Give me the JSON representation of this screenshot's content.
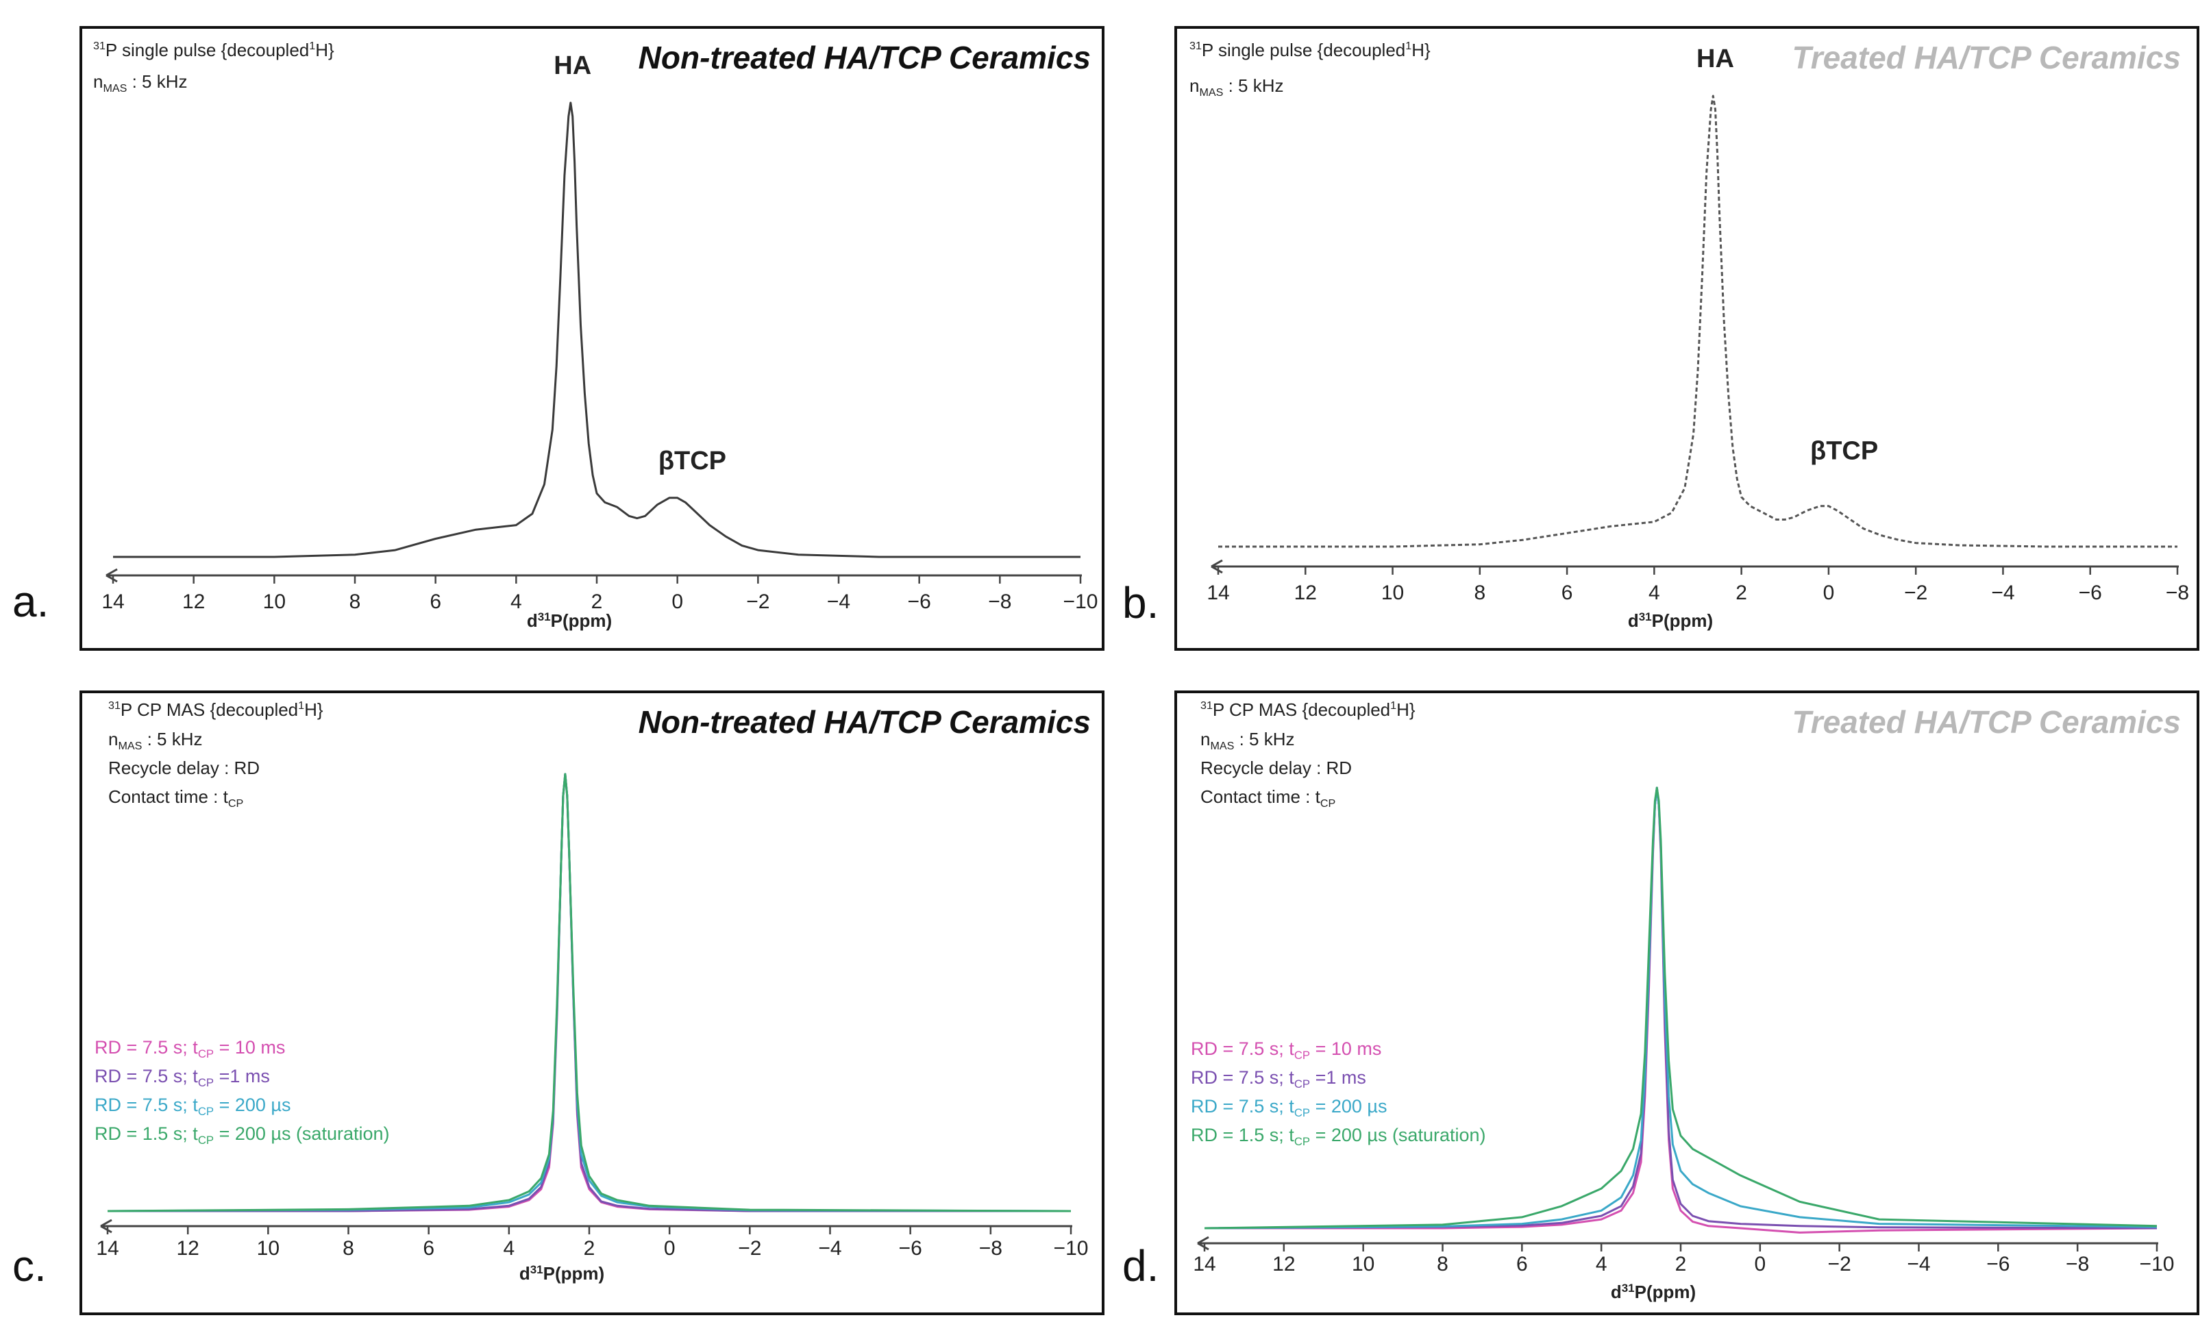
{
  "panels": [
    {
      "letter": "a.",
      "ceramic_title": "Non-treated HA/TCP Ceramics",
      "title_color": "#111111",
      "params": [
        {
          "pre": "",
          "sup": "31",
          "main": "P single pulse {decoupled",
          "sup2": "1",
          "post": "H}",
          "sub": ""
        },
        {
          "pre": "",
          "sup": "",
          "main": "n",
          "sub": "MAS",
          "post": " : 5 kHz",
          "sup2": ""
        }
      ],
      "axis": {
        "ticks": [
          14,
          12,
          10,
          8,
          6,
          4,
          2,
          0,
          -2,
          -4,
          -6,
          -8,
          -10
        ],
        "xlim": [
          14,
          -10
        ],
        "label_main": "d",
        "label_sup": "31",
        "label_post": "P(ppm)"
      },
      "peak_labels": [
        {
          "text": "HA",
          "ppm": 2.6
        },
        {
          "text": "βTCP",
          "ppm": -0.2
        }
      ],
      "chart_data": {
        "type": "line",
        "title": "Non-treated HA/TCP Ceramics",
        "xlabel": "d31P(ppm)",
        "xlim": [
          14,
          -10
        ],
        "ylim": [
          0,
          1
        ],
        "series": [
          {
            "name": "31P single pulse",
            "color": "#3a3a3a",
            "dash": "",
            "x": [
              14,
              10,
              8,
              7,
              6,
              5,
              4.5,
              4,
              3.6,
              3.3,
              3.1,
              3.0,
              2.9,
              2.8,
              2.7,
              2.65,
              2.6,
              2.55,
              2.5,
              2.4,
              2.3,
              2.2,
              2.1,
              2.0,
              1.8,
              1.5,
              1.2,
              1.0,
              0.8,
              0.5,
              0.2,
              0.0,
              -0.2,
              -0.5,
              -0.8,
              -1.2,
              -1.6,
              -2.0,
              -3,
              -5,
              -8,
              -10
            ],
            "y": [
              0.0,
              0.0,
              0.005,
              0.015,
              0.04,
              0.06,
              0.065,
              0.07,
              0.095,
              0.16,
              0.28,
              0.42,
              0.62,
              0.84,
              0.97,
              1.0,
              0.97,
              0.87,
              0.73,
              0.51,
              0.36,
              0.25,
              0.18,
              0.14,
              0.12,
              0.11,
              0.09,
              0.085,
              0.09,
              0.115,
              0.13,
              0.13,
              0.12,
              0.095,
              0.07,
              0.045,
              0.025,
              0.015,
              0.005,
              0.0,
              0.0,
              0.0
            ]
          }
        ]
      }
    },
    {
      "letter": "b.",
      "ceramic_title": "Treated HA/TCP Ceramics",
      "title_color": "#b8b8b8",
      "params": [
        {
          "pre": "",
          "sup": "31",
          "main": "P single pulse {decoupled",
          "sup2": "1",
          "post": "H}",
          "sub": ""
        },
        {
          "pre": "",
          "sup": "",
          "main": "n",
          "sub": "MAS",
          "post": " : 5 kHz",
          "sup2": ""
        }
      ],
      "axis": {
        "ticks": [
          14,
          12,
          10,
          8,
          6,
          4,
          2,
          0,
          -2,
          -4,
          -6,
          -8
        ],
        "xlim": [
          14,
          -8
        ],
        "label_main": "d",
        "label_sup": "31",
        "label_post": "P(ppm)"
      },
      "peak_labels": [
        {
          "text": "HA",
          "ppm": 2.6
        },
        {
          "text": "βTCP",
          "ppm": -0.2
        }
      ],
      "chart_data": {
        "type": "line",
        "title": "Treated HA/TCP Ceramics",
        "xlabel": "d31P(ppm)",
        "xlim": [
          14,
          -8
        ],
        "ylim": [
          0,
          1
        ],
        "series": [
          {
            "name": "31P single pulse",
            "color": "#555555",
            "dash": "6,4",
            "x": [
              14,
              10,
              8,
              7,
              6,
              5,
              4.5,
              4,
              3.6,
              3.3,
              3.1,
              3.0,
              2.9,
              2.8,
              2.7,
              2.65,
              2.6,
              2.55,
              2.5,
              2.4,
              2.3,
              2.2,
              2.1,
              2.0,
              1.8,
              1.5,
              1.2,
              1.0,
              0.8,
              0.5,
              0.2,
              0.0,
              -0.2,
              -0.5,
              -0.8,
              -1.2,
              -1.6,
              -2.0,
              -3,
              -5,
              -8
            ],
            "y": [
              0.0,
              0.0,
              0.005,
              0.015,
              0.03,
              0.045,
              0.05,
              0.055,
              0.075,
              0.13,
              0.25,
              0.39,
              0.6,
              0.83,
              0.97,
              1.0,
              0.97,
              0.87,
              0.73,
              0.5,
              0.34,
              0.22,
              0.15,
              0.11,
              0.09,
              0.075,
              0.06,
              0.06,
              0.065,
              0.08,
              0.09,
              0.09,
              0.08,
              0.06,
              0.04,
              0.025,
              0.015,
              0.008,
              0.003,
              0.0,
              0.0
            ]
          }
        ]
      }
    },
    {
      "letter": "c.",
      "ceramic_title": "Non-treated HA/TCP Ceramics",
      "title_color": "#111111",
      "params": [
        {
          "pre": "",
          "sup": "31",
          "main": "P CP MAS {decoupled",
          "sup2": "1",
          "post": "H}",
          "sub": ""
        },
        {
          "pre": "",
          "sup": "",
          "main": "n",
          "sub": "MAS",
          "post": " : 5 kHz",
          "sup2": ""
        },
        {
          "pre": "",
          "sup": "",
          "main": "Recycle delay : RD",
          "sub": "",
          "post": "",
          "sup2": ""
        },
        {
          "pre": "",
          "sup": "",
          "main": "Contact time : t",
          "sub": "CP",
          "post": "",
          "sup2": ""
        }
      ],
      "legend": [
        {
          "pre": "RD = 7.5 s; t",
          "sub": "CP",
          "post": " = 10 ms",
          "color": "#d44fb0"
        },
        {
          "pre": "RD = 7.5 s; t",
          "sub": "CP",
          "post": " =1 ms",
          "color": "#7a4fb0"
        },
        {
          "pre": "RD = 7.5 s; t",
          "sub": "CP",
          "post": " = 200 µs",
          "color": "#3aa8c8"
        },
        {
          "pre": "RD = 1.5 s; t",
          "sub": "CP",
          "post": " = 200 µs (saturation)",
          "color": "#3aa86a"
        }
      ],
      "axis": {
        "ticks": [
          14,
          12,
          10,
          8,
          6,
          4,
          2,
          0,
          -2,
          -4,
          -6,
          -8,
          -10
        ],
        "xlim": [
          14,
          -10
        ],
        "label_main": "d",
        "label_sup": "31",
        "label_post": "P(ppm)"
      },
      "peak_labels": [],
      "chart_data": {
        "type": "line",
        "title": "Non-treated HA/TCP Ceramics",
        "xlabel": "d31P(ppm)",
        "xlim": [
          14,
          -10
        ],
        "ylim": [
          0,
          1
        ],
        "series": [
          {
            "name": "RD = 7.5 s; tCP = 10 ms",
            "color": "#d44fb0",
            "dash": "",
            "x": [
              14,
              8,
              5,
              4,
              3.5,
              3.2,
              3.0,
              2.9,
              2.8,
              2.7,
              2.65,
              2.6,
              2.55,
              2.5,
              2.4,
              2.3,
              2.2,
              2.0,
              1.7,
              1.3,
              0.5,
              -2,
              -10
            ],
            "y": [
              0.0,
              0.0,
              0.003,
              0.01,
              0.025,
              0.05,
              0.1,
              0.2,
              0.45,
              0.8,
              0.95,
              1.0,
              0.95,
              0.82,
              0.5,
              0.22,
              0.1,
              0.05,
              0.02,
              0.01,
              0.004,
              0.0,
              0.0
            ]
          },
          {
            "name": "RD = 7.5 s; tCP =1 ms",
            "color": "#7a4fb0",
            "dash": "",
            "x": [
              14,
              8,
              5,
              4,
              3.5,
              3.2,
              3.0,
              2.9,
              2.8,
              2.7,
              2.65,
              2.6,
              2.55,
              2.5,
              2.4,
              2.3,
              2.2,
              2.0,
              1.7,
              1.3,
              0.5,
              -2,
              -10
            ],
            "y": [
              0.0,
              0.0,
              0.004,
              0.012,
              0.028,
              0.055,
              0.11,
              0.21,
              0.46,
              0.8,
              0.95,
              1.0,
              0.95,
              0.82,
              0.5,
              0.23,
              0.11,
              0.055,
              0.022,
              0.012,
              0.005,
              0.0,
              0.0
            ]
          },
          {
            "name": "RD = 7.5 s; tCP = 200 µs",
            "color": "#3aa8c8",
            "dash": "",
            "x": [
              14,
              8,
              5,
              4,
              3.5,
              3.2,
              3.0,
              2.9,
              2.8,
              2.7,
              2.65,
              2.6,
              2.55,
              2.5,
              2.4,
              2.3,
              2.2,
              2.0,
              1.7,
              1.3,
              0.5,
              -2,
              -10
            ],
            "y": [
              0.0,
              0.003,
              0.008,
              0.02,
              0.038,
              0.065,
              0.12,
              0.22,
              0.47,
              0.8,
              0.95,
              1.0,
              0.95,
              0.82,
              0.51,
              0.25,
              0.13,
              0.07,
              0.035,
              0.02,
              0.01,
              0.002,
              0.0
            ]
          },
          {
            "name": "RD = 1.5 s; tCP = 200 µs (saturation)",
            "color": "#3aa86a",
            "dash": "",
            "x": [
              14,
              8,
              5,
              4,
              3.5,
              3.2,
              3.0,
              2.9,
              2.8,
              2.7,
              2.65,
              2.6,
              2.55,
              2.5,
              2.4,
              2.3,
              2.2,
              2.0,
              1.7,
              1.3,
              0.5,
              -2,
              -10
            ],
            "y": [
              0.0,
              0.004,
              0.012,
              0.025,
              0.045,
              0.075,
              0.13,
              0.23,
              0.48,
              0.8,
              0.95,
              1.0,
              0.95,
              0.82,
              0.52,
              0.27,
              0.15,
              0.08,
              0.04,
              0.025,
              0.012,
              0.003,
              0.0
            ]
          }
        ]
      }
    },
    {
      "letter": "d.",
      "ceramic_title": "Treated HA/TCP Ceramics",
      "title_color": "#b8b8b8",
      "params": [
        {
          "pre": "",
          "sup": "31",
          "main": "P CP MAS {decoupled",
          "sup2": "1",
          "post": "H}",
          "sub": ""
        },
        {
          "pre": "",
          "sup": "",
          "main": "n",
          "sub": "MAS",
          "post": " : 5 kHz",
          "sup2": ""
        },
        {
          "pre": "",
          "sup": "",
          "main": "Recycle delay : RD",
          "sub": "",
          "post": "",
          "sup2": ""
        },
        {
          "pre": "",
          "sup": "",
          "main": "Contact time : t",
          "sub": "CP",
          "post": "",
          "sup2": ""
        }
      ],
      "legend": [
        {
          "pre": "RD = 7.5 s; t",
          "sub": "CP",
          "post": " = 10 ms",
          "color": "#d44fb0"
        },
        {
          "pre": "RD = 7.5 s; t",
          "sub": "CP",
          "post": " =1 ms",
          "color": "#7a4fb0"
        },
        {
          "pre": "RD = 7.5 s; t",
          "sub": "CP",
          "post": " = 200 µs",
          "color": "#3aa8c8"
        },
        {
          "pre": "RD = 1.5 s; t",
          "sub": "CP",
          "post": " = 200 µs (saturation)",
          "color": "#3aa86a"
        }
      ],
      "axis": {
        "ticks": [
          14,
          12,
          10,
          8,
          6,
          4,
          2,
          0,
          -2,
          -4,
          -6,
          -8,
          -10
        ],
        "xlim": [
          14,
          -10
        ],
        "label_main": "d",
        "label_sup": "31",
        "label_post": "P(ppm)"
      },
      "peak_labels": [],
      "chart_data": {
        "type": "line",
        "title": "Treated HA/TCP Ceramics",
        "xlabel": "d31P(ppm)",
        "xlim": [
          14,
          -10
        ],
        "ylim": [
          0,
          1
        ],
        "series": [
          {
            "name": "RD = 7.5 s; tCP = 10 ms",
            "color": "#d44fb0",
            "dash": "",
            "x": [
              14,
              8,
              6,
              5,
              4,
              3.5,
              3.2,
              3.0,
              2.9,
              2.8,
              2.7,
              2.65,
              2.6,
              2.55,
              2.5,
              2.4,
              2.3,
              2.2,
              2.0,
              1.7,
              1.3,
              0.5,
              -1,
              -3,
              -10
            ],
            "y": [
              0.0,
              0.0,
              0.003,
              0.008,
              0.02,
              0.04,
              0.08,
              0.15,
              0.3,
              0.55,
              0.85,
              0.96,
              1.0,
              0.96,
              0.85,
              0.45,
              0.2,
              0.09,
              0.04,
              0.015,
              0.005,
              0.0,
              -0.01,
              -0.005,
              0.0
            ]
          },
          {
            "name": "RD = 7.5 s; tCP =1 ms",
            "color": "#7a4fb0",
            "dash": "",
            "x": [
              14,
              8,
              6,
              5,
              4,
              3.5,
              3.2,
              3.0,
              2.9,
              2.8,
              2.7,
              2.65,
              2.6,
              2.55,
              2.5,
              2.4,
              2.3,
              2.2,
              2.0,
              1.7,
              1.3,
              0.5,
              -1,
              -3,
              -10
            ],
            "y": [
              0.0,
              0.003,
              0.006,
              0.012,
              0.028,
              0.05,
              0.095,
              0.17,
              0.32,
              0.57,
              0.86,
              0.96,
              1.0,
              0.96,
              0.86,
              0.47,
              0.22,
              0.11,
              0.055,
              0.028,
              0.016,
              0.01,
              0.005,
              0.002,
              0.0
            ]
          },
          {
            "name": "RD = 7.5 s; tCP = 200 µs",
            "color": "#3aa8c8",
            "dash": "",
            "x": [
              14,
              8,
              6,
              5,
              4,
              3.5,
              3.2,
              3.0,
              2.9,
              2.8,
              2.7,
              2.65,
              2.6,
              2.55,
              2.5,
              2.4,
              2.3,
              2.2,
              2.0,
              1.7,
              1.3,
              0.5,
              -1,
              -3,
              -10
            ],
            "y": [
              0.0,
              0.004,
              0.01,
              0.02,
              0.04,
              0.07,
              0.12,
              0.2,
              0.35,
              0.6,
              0.87,
              0.96,
              1.0,
              0.96,
              0.87,
              0.52,
              0.3,
              0.19,
              0.13,
              0.1,
              0.08,
              0.05,
              0.025,
              0.01,
              0.003
            ]
          },
          {
            "name": "RD = 1.5 s; tCP = 200 µs (saturation)",
            "color": "#3aa86a",
            "dash": "",
            "x": [
              14,
              8,
              6,
              5,
              4,
              3.5,
              3.2,
              3.0,
              2.9,
              2.8,
              2.7,
              2.65,
              2.6,
              2.55,
              2.5,
              2.4,
              2.3,
              2.2,
              2.0,
              1.7,
              1.3,
              0.5,
              -1,
              -3,
              -10
            ],
            "y": [
              0.0,
              0.008,
              0.025,
              0.05,
              0.09,
              0.13,
              0.18,
              0.26,
              0.4,
              0.64,
              0.88,
              0.97,
              1.0,
              0.97,
              0.88,
              0.58,
              0.38,
              0.27,
              0.21,
              0.18,
              0.16,
              0.12,
              0.06,
              0.02,
              0.005
            ]
          }
        ]
      }
    }
  ]
}
